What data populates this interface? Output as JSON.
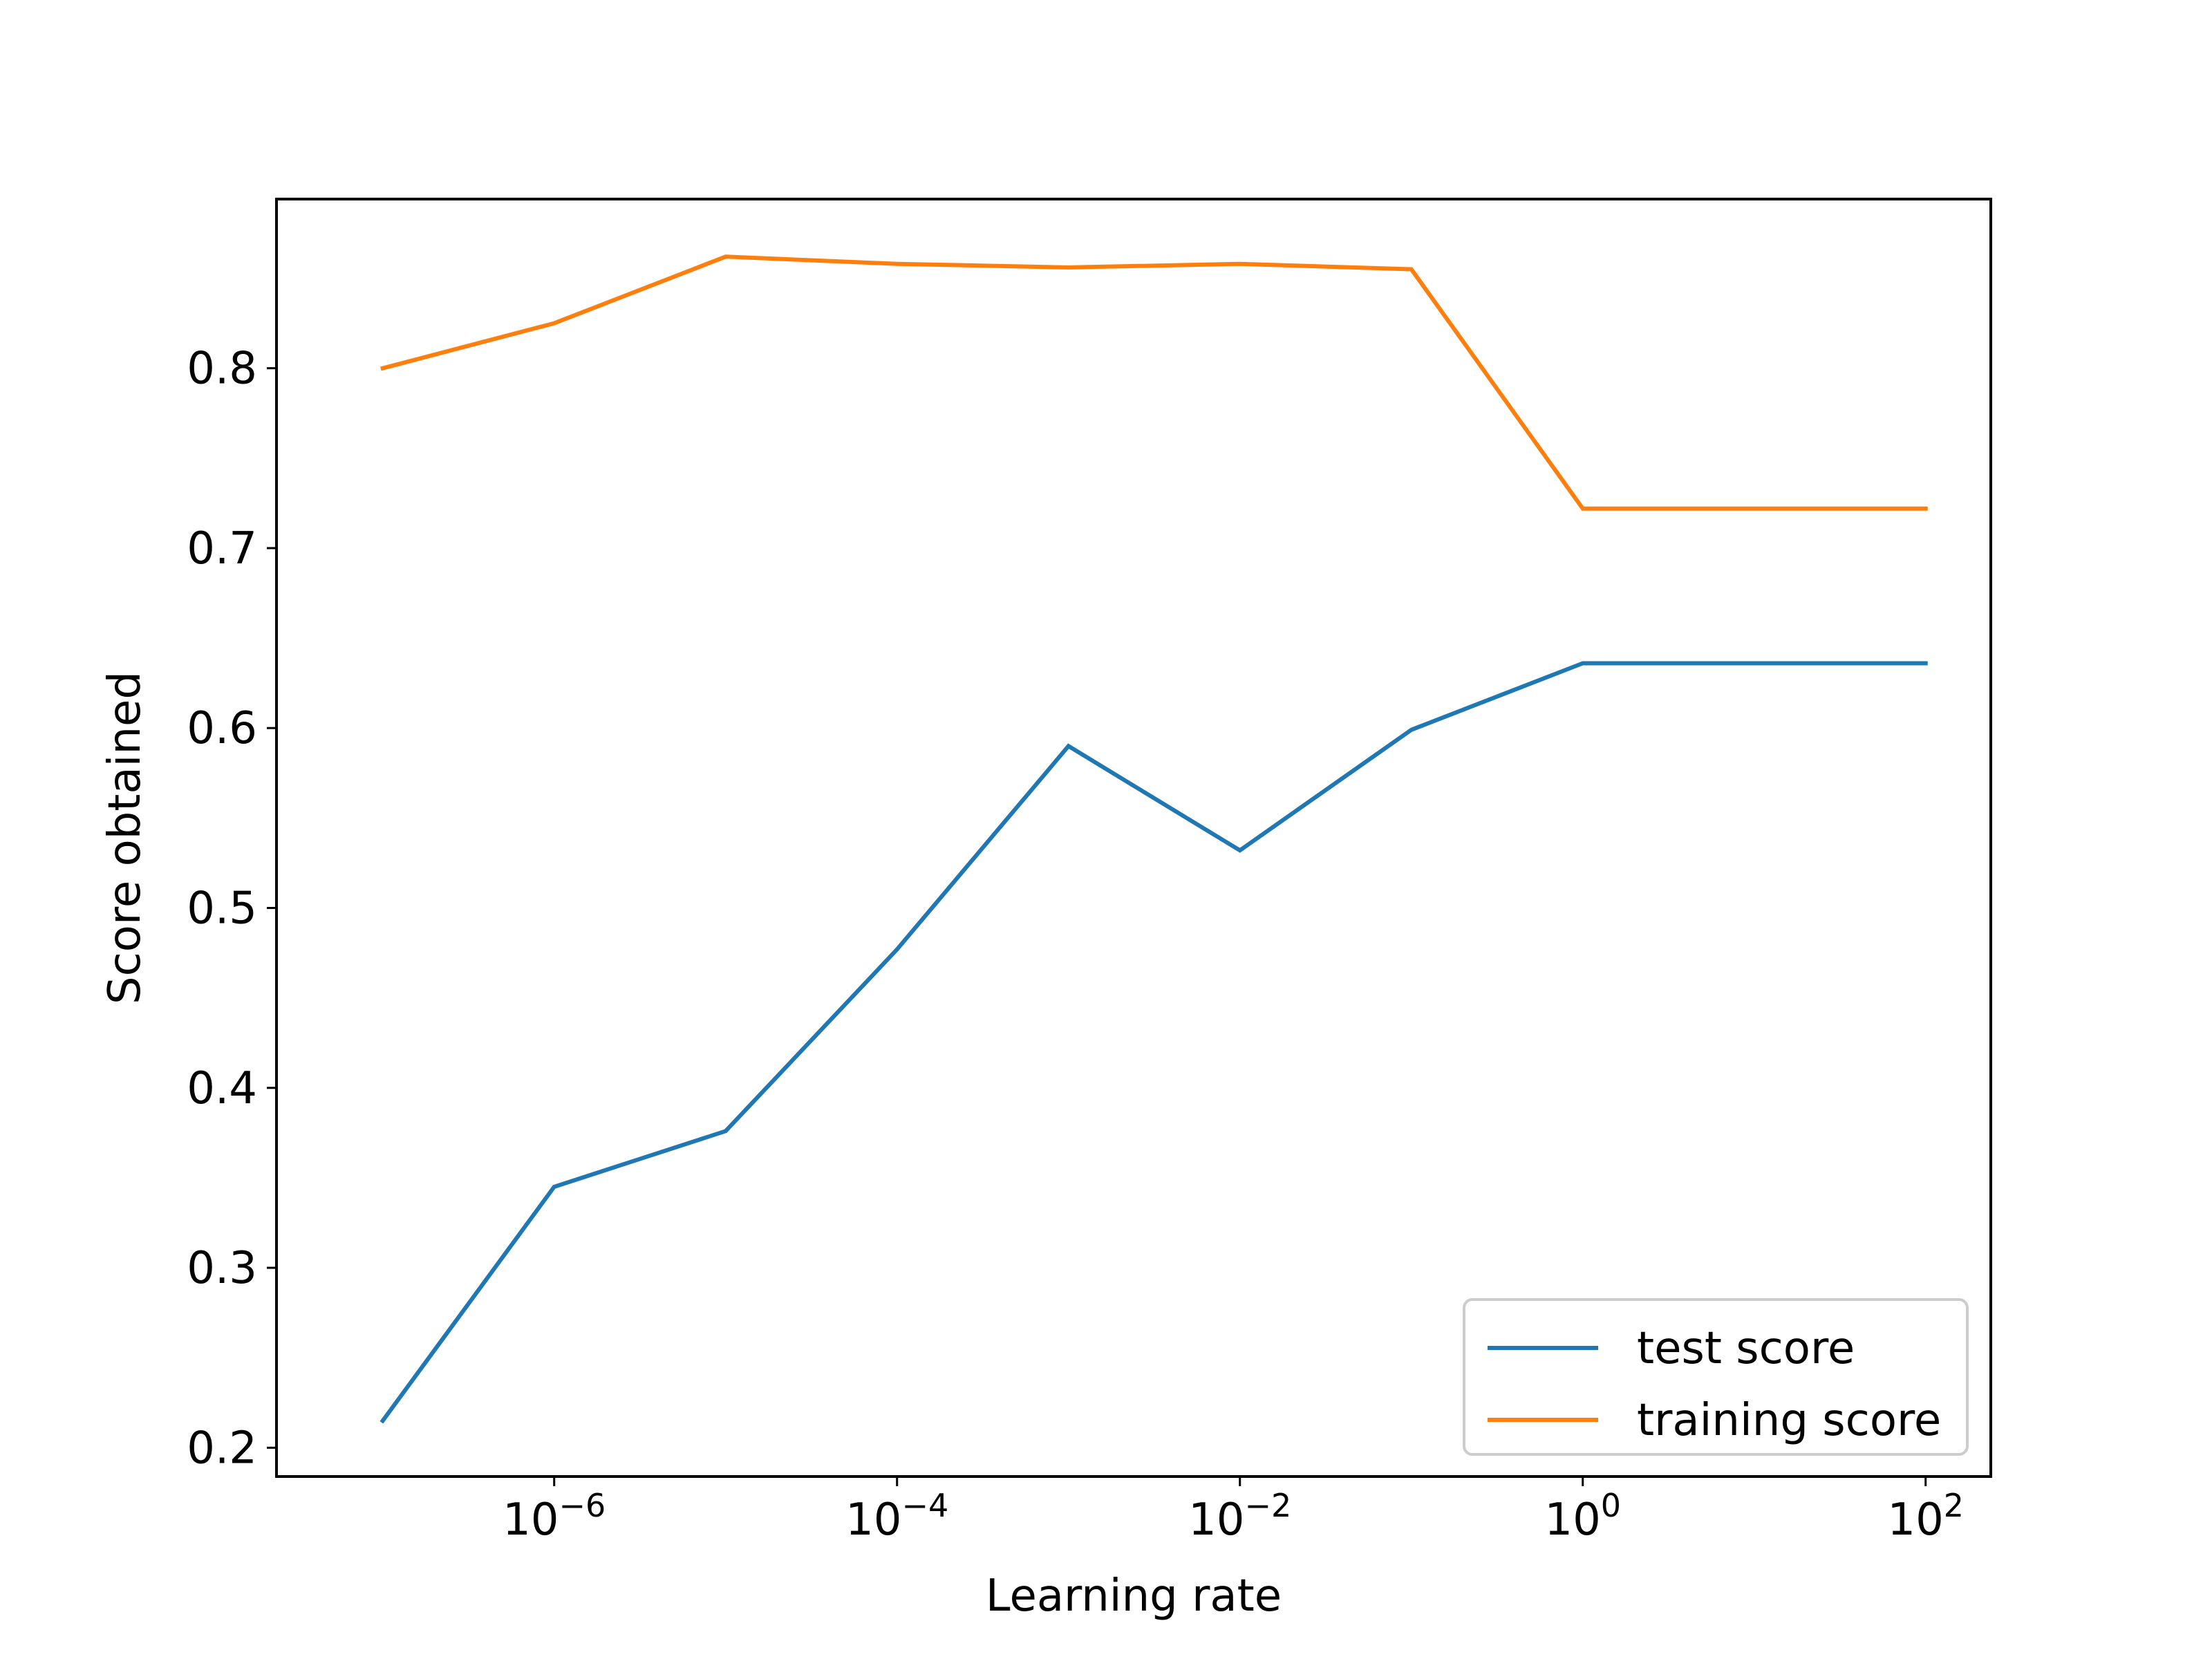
{
  "chart_data": {
    "type": "line",
    "xlabel": "Learning rate",
    "ylabel": "Score obtained",
    "xscale": "log",
    "xlim": [
      2.4e-08,
      240.0
    ],
    "ylim": [
      0.184,
      0.894
    ],
    "x": [
      1e-07,
      1e-06,
      1e-05,
      0.0001,
      0.001,
      0.01,
      0.1,
      1,
      10,
      100
    ],
    "xticks": [
      {
        "value": 1e-06,
        "base": "10",
        "exp": "−6"
      },
      {
        "value": 0.0001,
        "base": "10",
        "exp": "−4"
      },
      {
        "value": 0.01,
        "base": "10",
        "exp": "−2"
      },
      {
        "value": 1,
        "base": "10",
        "exp": "0"
      },
      {
        "value": 100,
        "base": "10",
        "exp": "2"
      }
    ],
    "yticks": [
      {
        "value": 0.2,
        "label": "0.2"
      },
      {
        "value": 0.3,
        "label": "0.3"
      },
      {
        "value": 0.4,
        "label": "0.4"
      },
      {
        "value": 0.5,
        "label": "0.5"
      },
      {
        "value": 0.6,
        "label": "0.6"
      },
      {
        "value": 0.7,
        "label": "0.7"
      },
      {
        "value": 0.8,
        "label": "0.8"
      }
    ],
    "series": [
      {
        "name": "test score",
        "color": "#1f77b4",
        "values": [
          0.215,
          0.345,
          0.376,
          0.477,
          0.59,
          0.532,
          0.599,
          0.636,
          0.636,
          0.636
        ]
      },
      {
        "name": "training score",
        "color": "#ff7f0e",
        "values": [
          0.8,
          0.825,
          0.862,
          0.858,
          0.856,
          0.858,
          0.855,
          0.722,
          0.722,
          0.722
        ]
      }
    ],
    "legend": "lower-right",
    "grid": false
  }
}
